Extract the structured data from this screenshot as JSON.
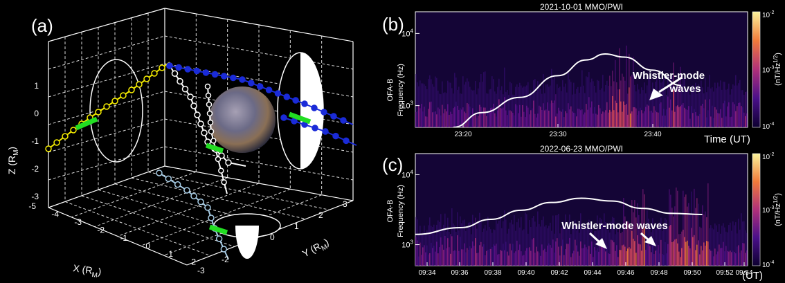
{
  "panel_a": {
    "label": "(a)",
    "xlabel": "X (R",
    "xlabel_sub": "M",
    "xlabel_close": ")",
    "ylabel": "Y (R",
    "ylabel_sub": "M",
    "ylabel_close": ")",
    "zlabel": "Z (R",
    "zlabel_sub": "M",
    "zlabel_close": ")",
    "z_ticks": [
      "1",
      "0",
      "-1",
      "-2",
      "-3"
    ],
    "x_ticks": [
      "-5",
      "-4",
      "-3",
      "-2",
      "-1",
      "0",
      "1",
      "2"
    ],
    "y_ticks": [
      "-3",
      "-2",
      "-1",
      "0",
      "1",
      "2",
      "3"
    ],
    "colors": {
      "yellow": "#f7ee00",
      "white": "#ffffff",
      "blue": "#1a2bd8",
      "lightblue": "#a8cde6",
      "green": "#22dd22",
      "planet": "#6e6a80"
    }
  },
  "chart_data": [
    {
      "type": "heatmap",
      "label": "(b)",
      "title": "2021-10-01 MMO/PWI",
      "ylabel_top": "OFA-B",
      "ylabel": "Frequency (Hz)",
      "y_scale": "log",
      "ylim": [
        500,
        20000
      ],
      "y_ticks": [
        "10",
        "10"
      ],
      "y_tick_exps": [
        "4",
        "3"
      ],
      "x_ticks": [
        "23:20",
        "23:30",
        "23:40"
      ],
      "x_unit": "Time (UT)",
      "colorbar": {
        "label": "(nT/Hz",
        "label_sup": "1/2",
        "label_close": ")",
        "ticks": [
          "10",
          "10",
          "10"
        ],
        "tick_exps": [
          "-2",
          "-3",
          "-4"
        ],
        "range": [
          0.0001,
          0.01
        ],
        "scale": "log"
      },
      "annotation": {
        "line1": "Whistler-mode",
        "line2": "waves"
      },
      "curve": {
        "name": "",
        "x": [
          "23:19",
          "23:22",
          "23:26",
          "23:30",
          "23:33",
          "23:35",
          "23:37",
          "23:40",
          "23:43"
        ],
        "y": [
          500,
          800,
          1300,
          2600,
          4300,
          5200,
          4700,
          3100,
          1900
        ]
      }
    },
    {
      "type": "heatmap",
      "label": "(c)",
      "title": "2022-06-23 MMO/PWI",
      "ylabel_top": "OFA-B",
      "ylabel": "Frequency (Hz)",
      "y_scale": "log",
      "ylim": [
        500,
        20000
      ],
      "y_ticks": [
        "10",
        "10"
      ],
      "y_tick_exps": [
        "4",
        "3"
      ],
      "x_ticks": [
        "09:34",
        "09:36",
        "09:38",
        "09:40",
        "09:42",
        "09:44",
        "09:46",
        "09:48",
        "09:50",
        "09:52",
        "09:54"
      ],
      "x_unit": "(UT)",
      "colorbar": {
        "label": "(nT/Hz",
        "label_sup": "1/2",
        "label_close": ")",
        "ticks": [
          "10",
          "10",
          "10"
        ],
        "tick_exps": [
          "-2",
          "-3",
          "-4"
        ],
        "range": [
          0.0001,
          0.01
        ],
        "scale": "log"
      },
      "annotation": {
        "line1": "Whistler-mode waves"
      },
      "curve": {
        "name": "",
        "x": [
          "09:33",
          "09:36",
          "09:38",
          "09:40",
          "09:42",
          "09:44",
          "09:46",
          "09:48",
          "09:50",
          "09:52"
        ],
        "y": [
          1400,
          1750,
          2300,
          3100,
          4000,
          4600,
          4200,
          3300,
          2800,
          2700
        ]
      }
    }
  ]
}
